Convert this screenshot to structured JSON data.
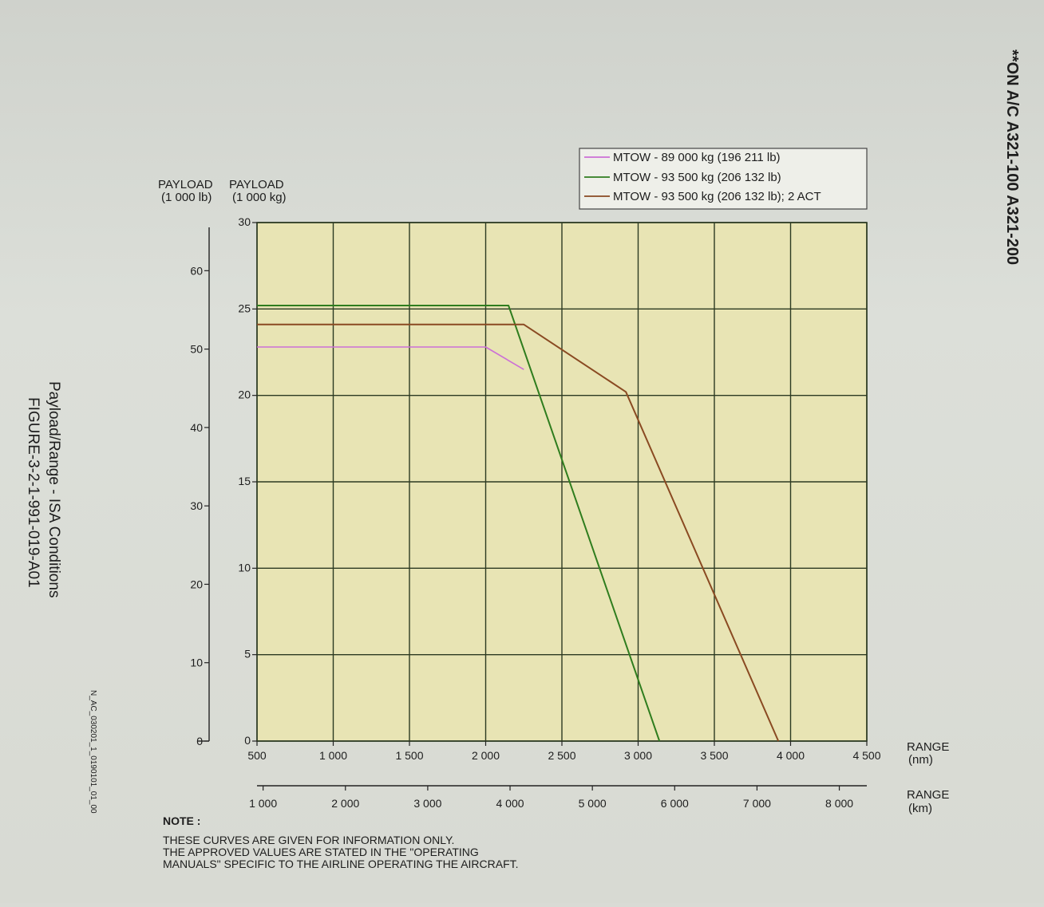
{
  "header": {
    "applicability": "**ON A/C A321-100 A321-200"
  },
  "figure": {
    "title": "Payload/Range - ISA Conditions",
    "number": "FIGURE-3-2-1-991-019-A01",
    "image_id": "N_AC_030201_1_0190101_01_00"
  },
  "note": {
    "heading": "NOTE :",
    "lines": [
      "THESE CURVES ARE GIVEN FOR INFORMATION ONLY.",
      "THE APPROVED VALUES ARE STATED IN THE \"OPERATING",
      "MANUALS\" SPECIFIC TO THE AIRLINE OPERATING THE AIRCRAFT."
    ]
  },
  "colors": {
    "plot_bg": "#e8e4b4",
    "grid": "#2c3a22",
    "pink": "#cc6fd6",
    "green": "#2f7d1e",
    "brown": "#8a4a22"
  },
  "chart_data": {
    "type": "line",
    "grid": true,
    "legend_position": "top-right",
    "y_axes": [
      {
        "title_line1": "PAYLOAD",
        "title_line2": "(1 000 lb)",
        "range": [
          0,
          66.14
        ],
        "ticks": [
          0,
          10,
          20,
          30,
          40,
          50,
          60
        ],
        "tick_labels": [
          "0",
          "10",
          "20",
          "30",
          "40",
          "50",
          "60"
        ]
      },
      {
        "title_line1": "PAYLOAD",
        "title_line2": "(1 000 kg)",
        "range": [
          0,
          30
        ],
        "ticks": [
          0,
          5,
          10,
          15,
          20,
          25,
          30
        ],
        "tick_labels": [
          "0",
          "5",
          "10",
          "15",
          "20",
          "25",
          "30"
        ]
      }
    ],
    "x_axes": [
      {
        "title_line1": "RANGE",
        "title_line2": "(nm)",
        "range": [
          500,
          4500
        ],
        "ticks": [
          500,
          1000,
          1500,
          2000,
          2500,
          3000,
          3500,
          4000,
          4500
        ],
        "tick_labels": [
          "500",
          "1 000",
          "1 500",
          "2 000",
          "2 500",
          "3 000",
          "3 500",
          "4 000",
          "4 500"
        ]
      },
      {
        "title_line1": "RANGE",
        "title_line2": "(km)",
        "ticks": [
          1000,
          2000,
          3000,
          4000,
          5000,
          6000,
          7000,
          8000
        ],
        "tick_labels": [
          "1 000",
          "2 000",
          "3 000",
          "4 000",
          "5 000",
          "6 000",
          "7 000",
          "8 000"
        ]
      }
    ],
    "series": [
      {
        "name": "MTOW - 89 000 kg (196 211 lb)",
        "color": "#cc6fd6",
        "x": [
          500,
          2000,
          2250
        ],
        "y": [
          22.8,
          22.8,
          21.5
        ]
      },
      {
        "name": "MTOW - 93 500 kg (206 132 lb)",
        "color": "#2f7d1e",
        "x": [
          500,
          2150,
          3140
        ],
        "y": [
          25.2,
          25.2,
          0
        ]
      },
      {
        "name": "MTOW - 93 500 kg (206 132 lb); 2 ACT",
        "color": "#8a4a22",
        "x": [
          500,
          2250,
          2920,
          3920
        ],
        "y": [
          24.1,
          24.1,
          20.2,
          0
        ]
      }
    ]
  }
}
